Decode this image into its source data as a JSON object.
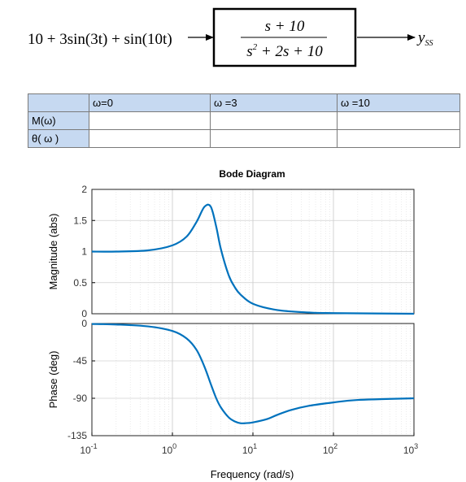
{
  "block_diagram": {
    "input_expr": "10 + 3sin(3t) + sin(10t)",
    "tf_numerator": "s + 10",
    "tf_denominator_base": "s",
    "tf_denominator_exp": "2",
    "tf_denominator_rest": " + 2s + 10",
    "output_symbol": "y",
    "output_subscript": "SS"
  },
  "table": {
    "columns": [
      "",
      "ω=0",
      "ω =3",
      "ω =10"
    ],
    "rows": [
      {
        "label": "M(ω)",
        "cells": [
          "",
          "",
          ""
        ]
      },
      {
        "label": "θ( ω )",
        "cells": [
          "",
          "",
          ""
        ]
      }
    ]
  },
  "chart_data": {
    "type": "line",
    "title": "Bode Diagram",
    "xlabel": "Frequency  (rad/s)",
    "x_scale": "log",
    "xlim": [
      0.1,
      1000
    ],
    "x_ticks": [
      {
        "base": "10",
        "exp": "-1"
      },
      {
        "base": "10",
        "exp": "0"
      },
      {
        "base": "10",
        "exp": "1"
      },
      {
        "base": "10",
        "exp": "2"
      },
      {
        "base": "10",
        "exp": "3"
      }
    ],
    "grid": true,
    "panels": [
      {
        "ylabel": "Magnitude (abs)",
        "ylim": [
          0,
          2
        ],
        "y_ticks": [
          "0",
          "0.5",
          "1",
          "1.5",
          "2"
        ],
        "x": [
          0.1,
          0.2,
          0.5,
          1,
          1.5,
          2,
          2.5,
          3,
          3.5,
          4,
          5,
          6,
          7,
          10,
          20,
          50,
          100,
          1000
        ],
        "y": [
          1.0,
          1.0,
          1.02,
          1.1,
          1.24,
          1.48,
          1.72,
          1.72,
          1.4,
          1.04,
          0.62,
          0.42,
          0.31,
          0.16,
          0.06,
          0.02,
          0.01,
          0.0
        ]
      },
      {
        "ylabel": "Phase (deg)",
        "ylim": [
          -135,
          0
        ],
        "y_ticks": [
          "0",
          "-45",
          "-90",
          "-135"
        ],
        "x": [
          0.1,
          0.2,
          0.5,
          1,
          1.5,
          2,
          2.5,
          3,
          3.5,
          4,
          5,
          6,
          7,
          8,
          10,
          15,
          20,
          30,
          50,
          100,
          200,
          1000
        ],
        "y": [
          -0.6,
          -1.2,
          -3.5,
          -9,
          -18,
          -32,
          -52,
          -73,
          -90,
          -101,
          -113,
          -118,
          -120,
          -120,
          -119,
          -115,
          -110,
          -104,
          -99,
          -95,
          -92,
          -90
        ]
      }
    ]
  }
}
